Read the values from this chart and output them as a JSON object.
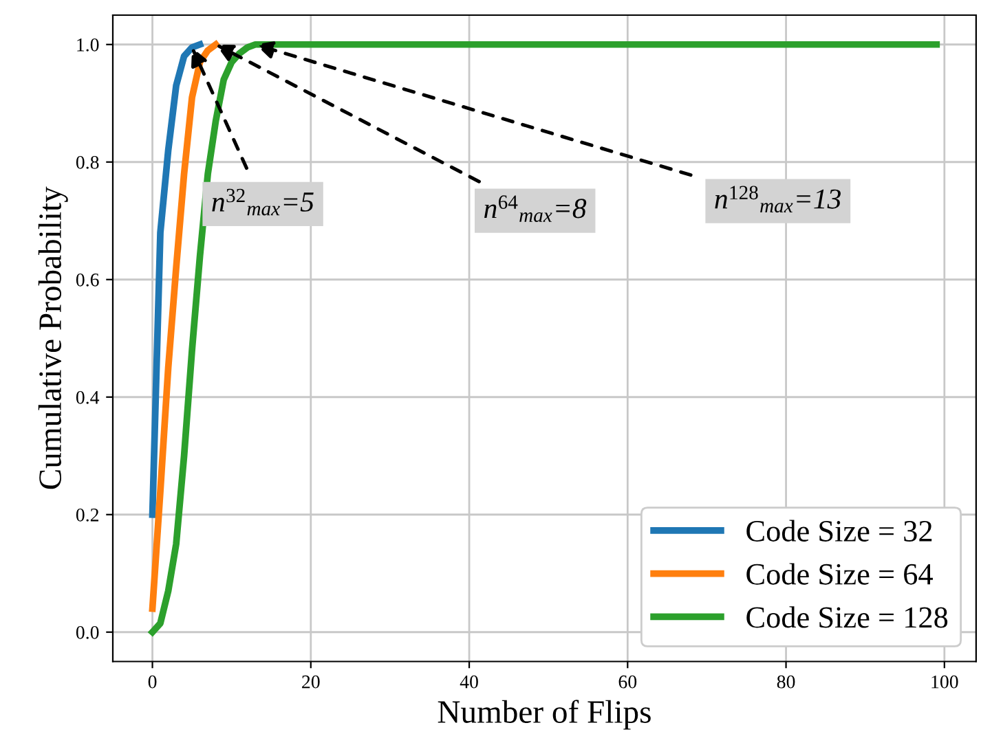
{
  "chart_data": {
    "type": "line",
    "xlabel": "Number of Flips",
    "ylabel": "Cumulative Probability",
    "series": [
      {
        "name": "Code Size = 32",
        "color": "#1f77b4",
        "x": [
          0,
          1,
          2,
          3,
          4,
          5,
          6
        ],
        "values": [
          0.2,
          0.68,
          0.82,
          0.93,
          0.98,
          0.995,
          1.0
        ]
      },
      {
        "name": "Code Size = 64",
        "color": "#ff7f0e",
        "x": [
          0,
          1,
          2,
          3,
          4,
          5,
          6,
          7,
          8
        ],
        "values": [
          0.04,
          0.24,
          0.45,
          0.62,
          0.78,
          0.91,
          0.97,
          0.99,
          1.0
        ]
      },
      {
        "name": "Code Size = 128",
        "color": "#2ca02c",
        "x": [
          0,
          1,
          2,
          3,
          4,
          5,
          6,
          7,
          8,
          9,
          10,
          11,
          12,
          13,
          99
        ],
        "values": [
          0.0,
          0.015,
          0.07,
          0.15,
          0.3,
          0.48,
          0.64,
          0.78,
          0.87,
          0.94,
          0.97,
          0.985,
          0.995,
          1.0,
          1.0
        ]
      }
    ],
    "annotations": [
      {
        "text": "n$^{32}$$_{max}$=5",
        "x": 5,
        "y": 0.995
      },
      {
        "text": "n$^{64}$$_{max}$=8",
        "x": 8,
        "y": 1.0
      },
      {
        "text": "n$^{128}$$_{max}$=13",
        "x": 13,
        "y": 1.0
      }
    ],
    "xlim": [
      -5,
      104
    ],
    "ylim": [
      -0.05,
      1.05
    ],
    "xticks": [
      0,
      20,
      40,
      60,
      80,
      100
    ],
    "yticks": [
      {
        "value": 0,
        "label": "0.0"
      },
      {
        "value": 0.2,
        "label": "0.2"
      },
      {
        "value": 0.4,
        "label": "0.4"
      },
      {
        "value": 0.6,
        "label": "0.6"
      },
      {
        "value": 0.8,
        "label": "0.8"
      },
      {
        "value": 1.0,
        "label": "1.0"
      }
    ],
    "grid": true,
    "legend": "bottom right",
    "marker": "none",
    "line_style": "solid"
  }
}
